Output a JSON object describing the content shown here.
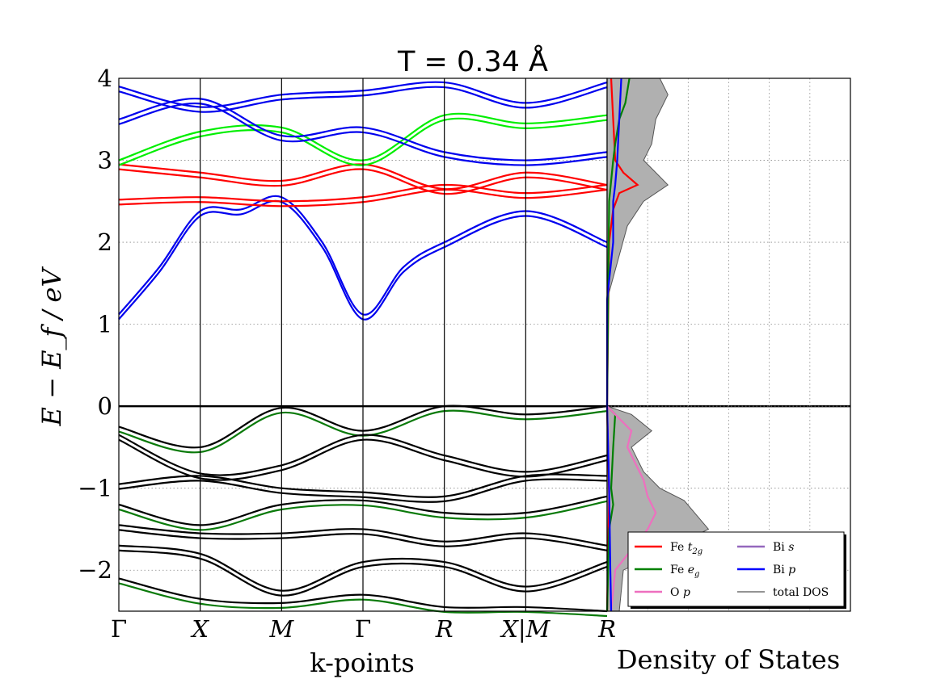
{
  "chart_data": [
    {
      "type": "line",
      "title": "T = 0.34 Å",
      "xlabel": "k-points",
      "ylabel": "E − E_f   /   eV",
      "ylim": [
        -2.5,
        4
      ],
      "yticks": [
        "−2",
        "−1",
        "0",
        "1",
        "2",
        "3",
        "4"
      ],
      "ytick_values": [
        -2,
        -1,
        0,
        1,
        2,
        3,
        4
      ],
      "kpoints": [
        "Γ",
        "X",
        "M",
        "Γ",
        "R",
        "X|M",
        "R"
      ],
      "kpoint_positions": [
        0,
        1,
        2,
        3,
        4,
        5,
        6
      ],
      "fermi_level": 0,
      "colors": {
        "conduction_blue": "#0000ee",
        "fe_t2g": "#ff0000",
        "fe_eg_highlight": "#00ee00",
        "valence": "#000000",
        "valence_green": "#0a7a0a",
        "purple": "#7a1a7a"
      },
      "series": [
        {
          "x": [
            0,
            0.5,
            1,
            1.5,
            2,
            2.5,
            3,
            3.5,
            4,
            5,
            6
          ],
          "y": [
            1.12,
            1.7,
            2.38,
            2.4,
            2.55,
            2.0,
            1.12,
            1.7,
            2.0,
            2.38,
            2.0
          ]
        },
        {
          "x": [
            0,
            1,
            2,
            3,
            4,
            5,
            6
          ],
          "y": [
            2.52,
            2.55,
            2.5,
            2.55,
            2.7,
            2.6,
            2.7
          ]
        },
        {
          "x": [
            0,
            1,
            2,
            3,
            4,
            5,
            6
          ],
          "y": [
            2.95,
            2.85,
            2.75,
            2.95,
            2.65,
            2.85,
            2.7
          ]
        },
        {
          "x": [
            0,
            1,
            2,
            3,
            4,
            5,
            6
          ],
          "y": [
            3.0,
            3.35,
            3.4,
            3.0,
            3.55,
            3.45,
            3.55
          ]
        },
        {
          "x": [
            0,
            1,
            2,
            3,
            4,
            5,
            6
          ],
          "y": [
            3.5,
            3.75,
            3.3,
            3.4,
            3.1,
            3.0,
            3.1
          ]
        },
        {
          "x": [
            0,
            1,
            2,
            3,
            4,
            5,
            6
          ],
          "y": [
            3.9,
            3.65,
            3.8,
            3.85,
            3.95,
            3.7,
            3.95
          ]
        },
        {
          "x": [
            0,
            1,
            2,
            3,
            4,
            5,
            6
          ],
          "y": [
            -0.25,
            -0.5,
            -0.02,
            -0.3,
            0.0,
            -0.1,
            0.0
          ]
        },
        {
          "x": [
            0,
            1,
            2,
            3,
            4,
            5,
            6
          ],
          "y": [
            -0.35,
            -0.82,
            -0.72,
            -0.35,
            -0.6,
            -0.8,
            -0.6
          ]
        },
        {
          "x": [
            0,
            1,
            2,
            3,
            4,
            5,
            6
          ],
          "y": [
            -0.95,
            -0.85,
            -1.0,
            -1.05,
            -1.1,
            -0.85,
            -0.85
          ]
        },
        {
          "x": [
            0,
            1,
            2,
            3,
            4,
            5,
            6
          ],
          "y": [
            -1.2,
            -1.45,
            -1.2,
            -1.15,
            -1.3,
            -1.3,
            -1.1
          ]
        },
        {
          "x": [
            0,
            1,
            2,
            3,
            4,
            5,
            6
          ],
          "y": [
            -1.45,
            -1.55,
            -1.55,
            -1.5,
            -1.65,
            -1.55,
            -1.7
          ]
        },
        {
          "x": [
            0,
            1,
            2,
            3,
            4,
            5,
            6
          ],
          "y": [
            -1.7,
            -1.8,
            -2.25,
            -1.9,
            -1.9,
            -2.2,
            -1.9
          ]
        },
        {
          "x": [
            0,
            1,
            2,
            3,
            4,
            5,
            6
          ],
          "y": [
            -2.1,
            -2.35,
            -2.4,
            -2.3,
            -2.45,
            -2.45,
            -2.5
          ]
        }
      ]
    },
    {
      "type": "area",
      "xlabel": "Density of States",
      "ylim": [
        -2.5,
        4
      ],
      "legend_placement": "bottom-right",
      "grid": true,
      "legend": [
        {
          "label": "Fe ",
          "sub": "t",
          "subsub": "2g",
          "color": "#ff0000"
        },
        {
          "label": "Fe ",
          "sub": "e",
          "subsub": "g",
          "color": "#008000"
        },
        {
          "label": "O ",
          "sub": "p",
          "subsub": "",
          "color": "#ee6fbf"
        },
        {
          "label": "Bi ",
          "sub": "s",
          "subsub": "",
          "color": "#9467bd"
        },
        {
          "label": "Bi ",
          "sub": "p",
          "subsub": "",
          "color": "#0000ff"
        },
        {
          "label": "total DOS",
          "sub": "",
          "subsub": "",
          "color": "#555555"
        }
      ],
      "series": [
        {
          "name": "total DOS",
          "y": [
            4.0,
            3.8,
            3.5,
            3.2,
            3.0,
            2.7,
            2.5,
            2.2,
            1.3,
            0.0,
            -0.1,
            -0.3,
            -0.5,
            -0.8,
            -1.0,
            -1.15,
            -1.5,
            -2.0,
            -2.5
          ],
          "x": [
            1.3,
            1.5,
            1.2,
            1.1,
            0.9,
            1.5,
            0.9,
            0.5,
            0.0,
            0.0,
            0.6,
            1.1,
            0.6,
            0.9,
            1.3,
            1.9,
            2.5,
            0.4,
            0.3
          ]
        },
        {
          "name": "Fe t2g",
          "y": [
            4.0,
            3.5,
            3.0,
            2.85,
            2.7,
            2.6,
            2.4,
            2.0,
            0.0,
            -1.1,
            -2.5
          ],
          "x": [
            0.1,
            0.15,
            0.2,
            0.4,
            0.75,
            0.3,
            0.15,
            0.05,
            0.0,
            0.05,
            0.0
          ]
        },
        {
          "name": "Fe eg",
          "y": [
            4.0,
            3.7,
            3.5,
            3.2,
            3.0,
            2.5,
            0.0,
            -0.1,
            -0.5,
            -1.0,
            -1.2,
            -1.5,
            -2.5
          ],
          "x": [
            0.55,
            0.45,
            0.3,
            0.2,
            0.15,
            0.05,
            0.0,
            0.2,
            0.15,
            0.1,
            0.15,
            0.05,
            0.0
          ]
        },
        {
          "name": "O p",
          "y": [
            0.0,
            -0.1,
            -0.3,
            -0.5,
            -0.7,
            -0.9,
            -1.1,
            -1.3,
            -1.5,
            -2.0,
            -2.5
          ],
          "x": [
            0.0,
            0.2,
            0.6,
            0.5,
            0.7,
            0.9,
            1.0,
            1.2,
            1.0,
            0.2,
            0.1
          ]
        },
        {
          "name": "Bi p",
          "y": [
            4.0,
            3.5,
            3.0,
            2.7,
            2.5,
            2.0,
            1.3,
            0.0,
            -1.0,
            -2.0,
            -2.5
          ],
          "x": [
            0.35,
            0.3,
            0.25,
            0.2,
            0.15,
            0.15,
            0.0,
            0.0,
            0.05,
            0.08,
            0.1
          ]
        }
      ]
    }
  ]
}
